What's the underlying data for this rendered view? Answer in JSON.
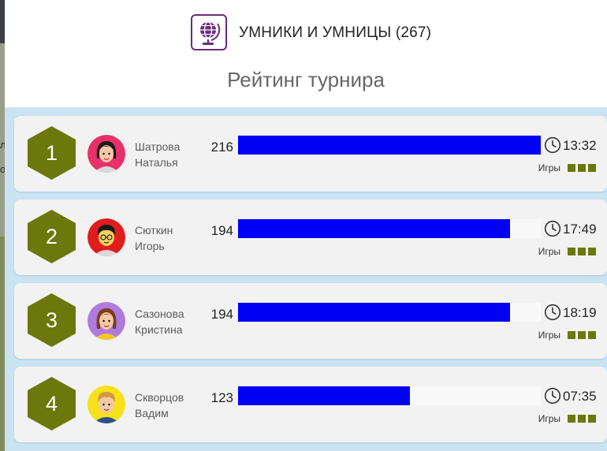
{
  "sidebar_fragment": {
    "line1": "л",
    "line2": "о"
  },
  "header": {
    "tournament_name": "УМНИКИ И УМНИЦЫ (267)",
    "title": "Рейтинг турнира",
    "logo_icon": "globe-icon",
    "logo_color": "#6a2b7e"
  },
  "colors": {
    "rank_badge": "#6a780c",
    "score_bar": "#0000f5",
    "list_background": "#c9e3f3"
  },
  "players": [
    {
      "rank": "1",
      "first_line": "Шатрова",
      "second_line": "Наталья",
      "score": "216",
      "score_fraction": 1.0,
      "time": "13:32",
      "games_label": "Игры",
      "games_count": 3,
      "avatar_icon": "girl-avatar-icon",
      "avatar_bg": "#e8306b"
    },
    {
      "rank": "2",
      "first_line": "Сюткин",
      "second_line": "Игорь",
      "score": "194",
      "score_fraction": 0.898,
      "time": "17:49",
      "games_label": "Игры",
      "games_count": 3,
      "avatar_icon": "boy-avatar-icon",
      "avatar_bg": "#e01c1c"
    },
    {
      "rank": "3",
      "first_line": "Сазонова",
      "second_line": "Кристина",
      "score": "194",
      "score_fraction": 0.898,
      "time": "18:19",
      "games_label": "Игры",
      "games_count": 3,
      "avatar_icon": "girl-avatar-icon",
      "avatar_bg": "#b07adf"
    },
    {
      "rank": "4",
      "first_line": "Скворцов",
      "second_line": "Вадим",
      "score": "123",
      "score_fraction": 0.569,
      "time": "07:35",
      "games_label": "Игры",
      "games_count": 3,
      "avatar_icon": "boy-avatar-icon",
      "avatar_bg": "#f7e11a"
    }
  ]
}
